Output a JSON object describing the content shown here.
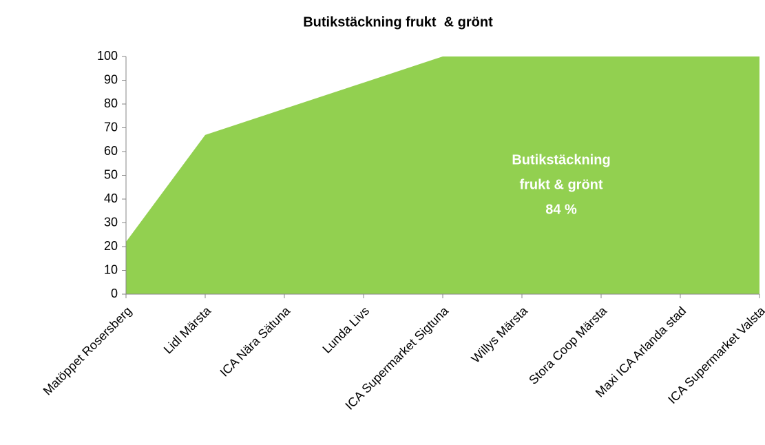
{
  "chart_data": {
    "type": "area",
    "title": "Butikstäckning frukt  & grönt",
    "categories": [
      "Matöppet Rosersberg",
      "Lidl Märsta",
      "ICA Nära Sätuna",
      "Lunda Livs",
      "ICA Supermarket Sigtuna",
      "Willys Märsta",
      "Stora Coop Märsta",
      "Maxi ICA Arlanda stad",
      "ICA Supermarket Valsta"
    ],
    "values": [
      22,
      67,
      78,
      89,
      100,
      100,
      100,
      100,
      100
    ],
    "color": "#92d050",
    "ylim": [
      0,
      100
    ],
    "yticks": [
      0,
      10,
      20,
      30,
      40,
      50,
      60,
      70,
      80,
      90,
      100
    ],
    "grid": false,
    "annotation": [
      "Butikstäckning",
      "frukt & grönt",
      "84 %"
    ]
  }
}
